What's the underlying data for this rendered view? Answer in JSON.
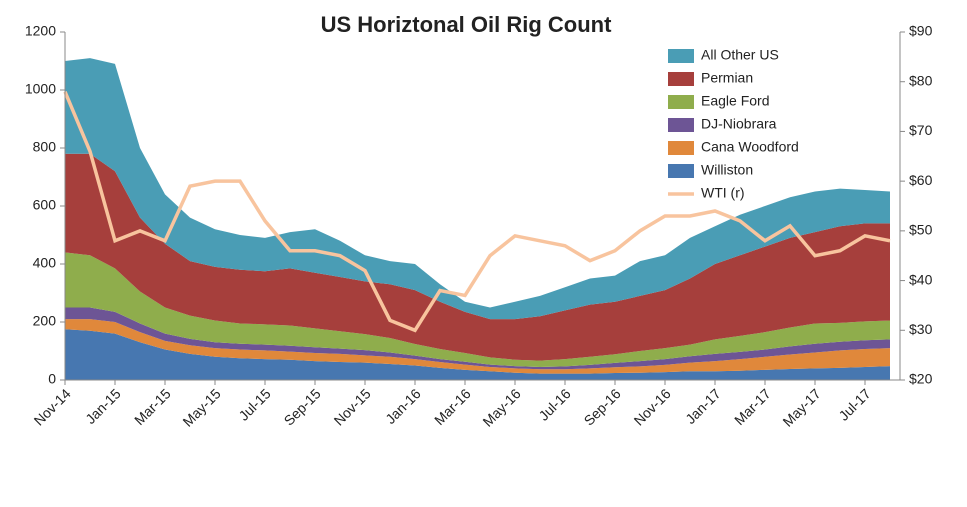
{
  "chart_data": {
    "type": "stacked-area",
    "title": "US Horiztonal Oil Rig Count",
    "categories": [
      "Nov-14",
      null,
      "Jan-15",
      null,
      "Mar-15",
      null,
      "May-15",
      null,
      "Jul-15",
      null,
      "Sep-15",
      null,
      "Nov-15",
      null,
      "Jan-16",
      null,
      "Mar-16",
      null,
      "May-16",
      null,
      "Jul-16",
      null,
      "Sep-16",
      null,
      "Nov-16",
      null,
      "Jan-17",
      null,
      "Mar-17",
      null,
      "May-17",
      null,
      "Jul-17",
      null
    ],
    "series": [
      {
        "name": "All Other US",
        "color": "#4a9db5",
        "values": [
          320,
          330,
          370,
          240,
          170,
          150,
          130,
          120,
          115,
          125,
          150,
          125,
          90,
          80,
          90,
          60,
          35,
          40,
          60,
          70,
          80,
          90,
          90,
          120,
          120,
          140,
          130,
          140,
          140,
          140,
          140,
          130,
          115,
          110
        ]
      },
      {
        "name": "Permian",
        "color": "#a63f3c",
        "values": [
          340,
          350,
          335,
          255,
          220,
          188,
          185,
          185,
          183,
          197,
          192,
          187,
          182,
          185,
          186,
          163,
          142,
          132,
          140,
          153,
          168,
          180,
          181,
          190,
          200,
          228,
          260,
          278,
          295,
          309,
          315,
          333,
          338,
          335
        ]
      },
      {
        "name": "Eagle Ford",
        "color": "#8fad4c",
        "values": [
          190,
          180,
          150,
          110,
          90,
          80,
          75,
          70,
          70,
          70,
          65,
          60,
          55,
          50,
          40,
          35,
          30,
          25,
          22,
          22,
          25,
          28,
          30,
          35,
          38,
          40,
          50,
          55,
          60,
          65,
          70,
          65,
          65,
          65
        ]
      },
      {
        "name": "DJ-Niobrara",
        "color": "#6d5595",
        "values": [
          40,
          40,
          35,
          30,
          25,
          22,
          20,
          20,
          20,
          20,
          20,
          18,
          18,
          15,
          12,
          10,
          10,
          8,
          8,
          8,
          10,
          12,
          15,
          18,
          20,
          22,
          25,
          25,
          25,
          28,
          30,
          30,
          30,
          30
        ]
      },
      {
        "name": "Cana Woodford",
        "color": "#e0883b",
        "values": [
          35,
          40,
          40,
          35,
          30,
          30,
          30,
          30,
          30,
          28,
          28,
          28,
          25,
          25,
          22,
          20,
          18,
          15,
          15,
          15,
          15,
          18,
          20,
          22,
          25,
          30,
          35,
          40,
          45,
          50,
          55,
          60,
          62,
          62
        ]
      },
      {
        "name": "Williston",
        "color": "#4777b0",
        "values": [
          175,
          170,
          160,
          130,
          105,
          90,
          80,
          75,
          72,
          70,
          65,
          62,
          60,
          55,
          50,
          42,
          35,
          30,
          25,
          22,
          22,
          22,
          24,
          25,
          27,
          30,
          30,
          32,
          35,
          38,
          40,
          42,
          45,
          48
        ]
      },
      {
        "name": "WTI (r)",
        "color": "#f8c49e",
        "axis": "y2",
        "type": "line",
        "values": [
          78,
          66,
          48,
          50,
          48,
          59,
          60,
          60,
          52,
          46,
          46,
          45,
          42,
          32,
          30,
          38,
          37,
          45,
          49,
          48,
          47,
          44,
          46,
          50,
          53,
          53,
          54,
          52,
          48,
          51,
          45,
          46,
          49,
          48
        ]
      }
    ],
    "ylim": [
      0,
      1200
    ],
    "yticks": [
      0,
      200,
      400,
      600,
      800,
      1000,
      1200
    ],
    "y2lim": [
      20,
      90
    ],
    "y2ticks": [
      {
        "value": 20,
        "label": "$20"
      },
      {
        "value": 30,
        "label": "$30"
      },
      {
        "value": 40,
        "label": "$40"
      },
      {
        "value": 50,
        "label": "$50"
      },
      {
        "value": 60,
        "label": "$60"
      },
      {
        "value": 70,
        "label": "$70"
      },
      {
        "value": 80,
        "label": "$80"
      },
      {
        "value": 90,
        "label": "$90"
      }
    ],
    "legend": "top-right"
  }
}
